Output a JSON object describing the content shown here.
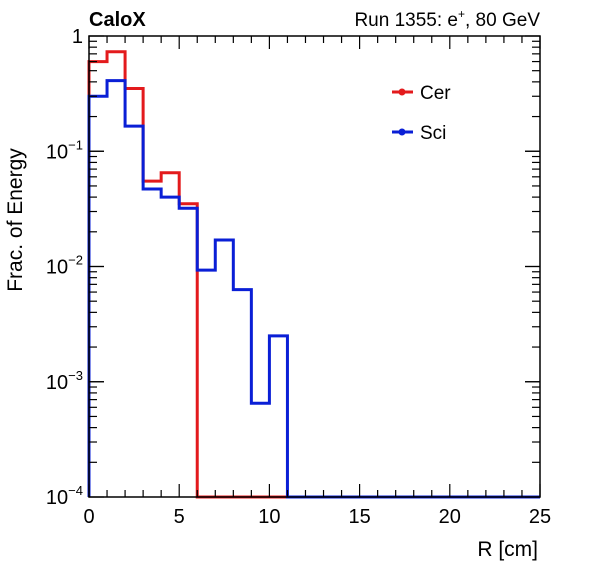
{
  "header": {
    "left": "CaloX",
    "right_prefix": "Run 1355: e",
    "right_sup": "+",
    "right_suffix": ", 80 GeV"
  },
  "chart_data": {
    "type": "line",
    "step": true,
    "xlabel": "R [cm]",
    "ylabel": "Frac. of Energy",
    "xlim": [
      0,
      25
    ],
    "ylim": [
      0.0001,
      1
    ],
    "yscale": "log",
    "grid": false,
    "legend_position": "top-right",
    "x_ticks": [
      {
        "value": 0,
        "label": "0"
      },
      {
        "value": 5,
        "label": "5"
      },
      {
        "value": 10,
        "label": "10"
      },
      {
        "value": 15,
        "label": "15"
      },
      {
        "value": 20,
        "label": "20"
      },
      {
        "value": 25,
        "label": "25"
      }
    ],
    "y_ticks": [
      {
        "value": 1,
        "base": "1",
        "exp": ""
      },
      {
        "value": 0.1,
        "base": "10",
        "exp": "−1"
      },
      {
        "value": 0.01,
        "base": "10",
        "exp": "−2"
      },
      {
        "value": 0.001,
        "base": "10",
        "exp": "−3"
      },
      {
        "value": 0.0001,
        "base": "10",
        "exp": "−4"
      }
    ],
    "bin_edges": [
      0,
      1,
      2,
      3,
      4,
      5,
      6,
      7,
      8,
      9,
      10,
      11,
      12,
      13,
      14,
      15,
      16,
      17,
      18,
      19,
      20,
      21,
      22,
      23,
      24,
      25
    ],
    "series": [
      {
        "name": "Cer",
        "color": "#e31a1c",
        "values": [
          0.6,
          0.73,
          0.35,
          0.055,
          0.065,
          0.035,
          0,
          0,
          0,
          0,
          0,
          0,
          0,
          0,
          0,
          0,
          0,
          0,
          0,
          0,
          0,
          0,
          0,
          0,
          0
        ]
      },
      {
        "name": "Sci",
        "color": "#0a1fd6",
        "values": [
          0.3,
          0.41,
          0.165,
          0.047,
          0.04,
          0.032,
          0.0093,
          0.017,
          0.0063,
          0.00065,
          0.0025,
          0,
          0,
          0,
          0,
          0,
          0,
          0,
          0,
          0,
          0,
          0,
          0,
          0,
          0
        ]
      }
    ]
  }
}
